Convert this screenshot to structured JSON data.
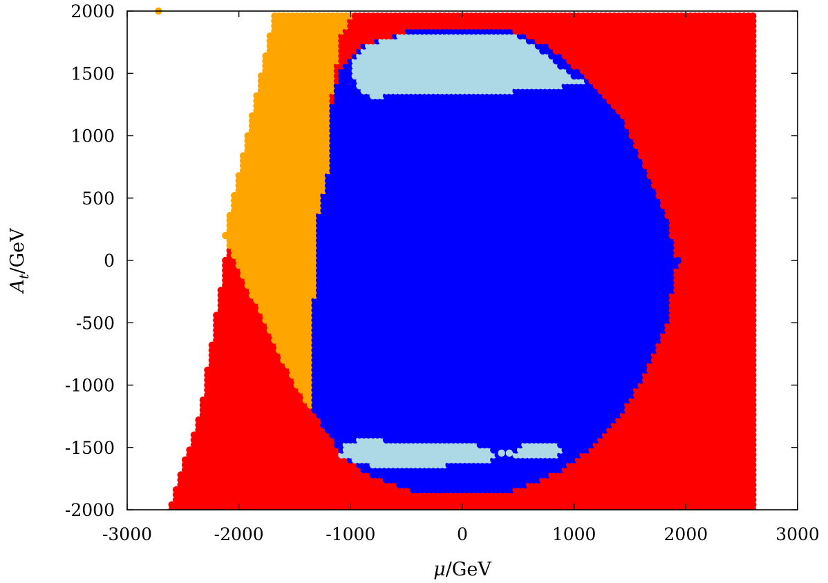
{
  "chart_data": {
    "type": "scatter",
    "title": "",
    "xlabel_var": "μ",
    "xlabel_unit": "/GeV",
    "ylabel_var": "A",
    "ylabel_sub": "t",
    "ylabel_unit": "/GeV",
    "xlim": [
      -3000,
      3000
    ],
    "ylim": [
      -2000,
      2000
    ],
    "x_ticks": [
      -3000,
      -2000,
      -1000,
      0,
      1000,
      2000,
      3000
    ],
    "y_ticks": [
      -2000,
      -1500,
      -1000,
      -500,
      0,
      500,
      1000,
      1500,
      2000
    ],
    "grid": false,
    "legend": "none",
    "colors": {
      "excluded": "#ff0000",
      "tachyonic": "#ffa500",
      "allowed": "#0000ff",
      "preferred": "#add8e6"
    },
    "regions": [
      {
        "color": "#ff0000",
        "boundary": [
          [
            -2620,
            -2000
          ],
          [
            -2340,
            -1200
          ],
          [
            -2120,
            0
          ],
          [
            -1680,
            2000
          ],
          [
            2640,
            2000
          ],
          [
            2640,
            -2000
          ]
        ]
      },
      {
        "color": "#ffa500",
        "boundary": [
          [
            -2120,
            200
          ],
          [
            -1980,
            800
          ],
          [
            -1820,
            1400
          ],
          [
            -1670,
            2000
          ],
          [
            -960,
            2000
          ],
          [
            -1080,
            1800
          ],
          [
            -1180,
            1200
          ],
          [
            -1200,
            700
          ],
          [
            -1300,
            300
          ],
          [
            -1330,
            -600
          ],
          [
            -1360,
            -1200
          ],
          [
            -1480,
            -1000
          ],
          [
            -1660,
            -700
          ],
          [
            -1870,
            -300
          ],
          [
            -2060,
            50
          ]
        ]
      },
      {
        "color": "#0000ff",
        "boundary": [
          [
            -420,
            1860
          ],
          [
            400,
            1860
          ],
          [
            760,
            1730
          ],
          [
            1120,
            1470
          ],
          [
            1420,
            1180
          ],
          [
            1650,
            730
          ],
          [
            1840,
            360
          ],
          [
            1930,
            0
          ],
          [
            1840,
            -500
          ],
          [
            1650,
            -900
          ],
          [
            1420,
            -1240
          ],
          [
            1150,
            -1510
          ],
          [
            850,
            -1700
          ],
          [
            420,
            -1860
          ],
          [
            -420,
            -1860
          ],
          [
            -880,
            -1700
          ],
          [
            -1060,
            -1560
          ],
          [
            -1200,
            -1380
          ],
          [
            -1340,
            -1200
          ],
          [
            -1330,
            -600
          ],
          [
            -1300,
            300
          ],
          [
            -1200,
            700
          ],
          [
            -1180,
            1200
          ],
          [
            -1080,
            1550
          ],
          [
            -900,
            1720
          ]
        ]
      },
      {
        "color": "#add8e6",
        "boundary": [
          [
            -980,
            1580
          ],
          [
            -850,
            1720
          ],
          [
            -500,
            1830
          ],
          [
            -350,
            1840
          ],
          [
            360,
            1840
          ],
          [
            550,
            1780
          ],
          [
            750,
            1650
          ],
          [
            950,
            1500
          ],
          [
            1100,
            1440
          ],
          [
            900,
            1400
          ],
          [
            700,
            1370
          ],
          [
            200,
            1350
          ],
          [
            -500,
            1340
          ],
          [
            -800,
            1310
          ],
          [
            -950,
            1400
          ]
        ]
      },
      {
        "color": "#add8e6",
        "boundary": [
          [
            -1050,
            -1460
          ],
          [
            -900,
            -1430
          ],
          [
            -300,
            -1460
          ],
          [
            -100,
            -1440
          ],
          [
            100,
            -1470
          ],
          [
            300,
            -1540
          ],
          [
            250,
            -1600
          ],
          [
            0,
            -1620
          ],
          [
            -200,
            -1650
          ],
          [
            -750,
            -1650
          ],
          [
            -950,
            -1620
          ],
          [
            -1080,
            -1560
          ]
        ]
      },
      {
        "color": "#add8e6",
        "boundary": [
          [
            550,
            -1480
          ],
          [
            850,
            -1470
          ],
          [
            920,
            -1550
          ],
          [
            700,
            -1590
          ],
          [
            500,
            -1580
          ],
          [
            450,
            -1540
          ]
        ]
      }
    ],
    "extra_points": [
      {
        "x": -2720,
        "y": 2000,
        "color": "#ffa500"
      },
      {
        "x": 1930,
        "y": 0,
        "color": "#0000ff"
      },
      {
        "x": 420,
        "y": -1545,
        "color": "#add8e6"
      },
      {
        "x": 350,
        "y": -1545,
        "color": "#add8e6"
      }
    ]
  }
}
